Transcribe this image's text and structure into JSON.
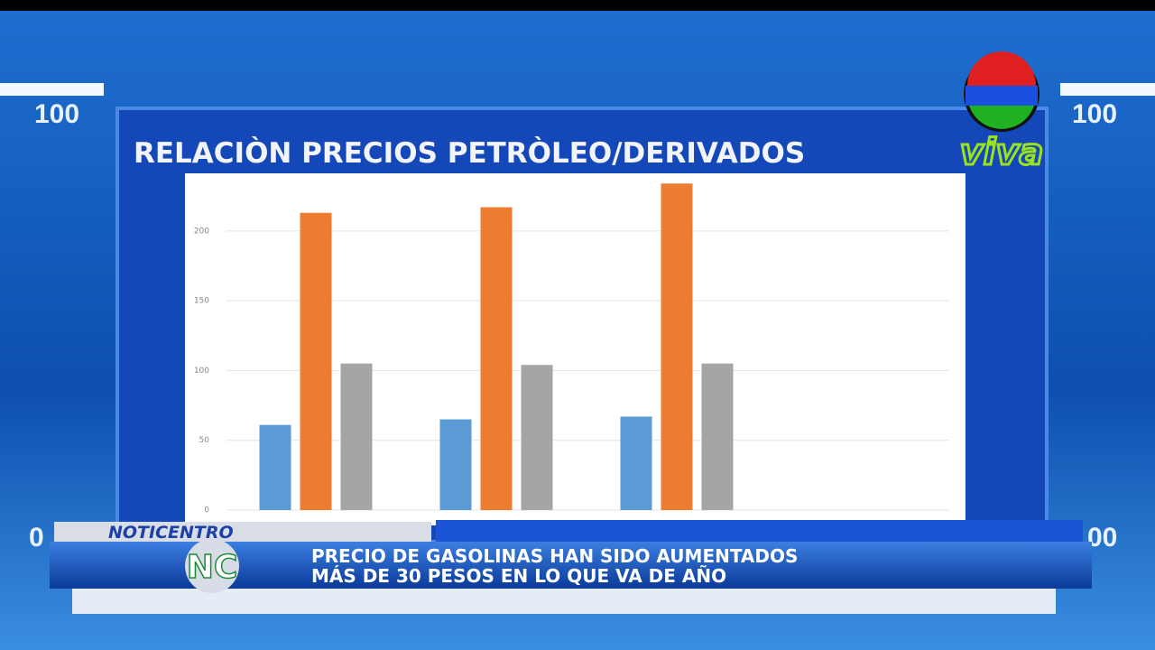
{
  "background_labels": {
    "top_left": "100",
    "top_right": "100",
    "bottom_left": "0",
    "bottom_right": "00"
  },
  "logo": {
    "text": "viva"
  },
  "chart_data": {
    "type": "bar",
    "title": "RELACIÒN PRECIOS PETRÒLEO/DERIVADOS",
    "categories": [
      null,
      null,
      null
    ],
    "series": [
      {
        "color": "#5b9bd5",
        "values": [
          61,
          65,
          67
        ]
      },
      {
        "color": "#ed7d31",
        "values": [
          213,
          217,
          234
        ]
      },
      {
        "color": "#a5a5a5",
        "values": [
          105,
          104,
          105
        ]
      }
    ],
    "ylim": [
      0,
      240
    ],
    "yticks": [
      0,
      50,
      100,
      150,
      200
    ],
    "grid": true
  },
  "lower_third": {
    "program": "NOTICENTRO",
    "program_logo": "NC",
    "headline": [
      "PRECIO DE GASOLINAS HAN SIDO AUMENTADOS",
      "MÁS DE 30 PESOS EN LO QUE VA DE AÑO"
    ]
  }
}
